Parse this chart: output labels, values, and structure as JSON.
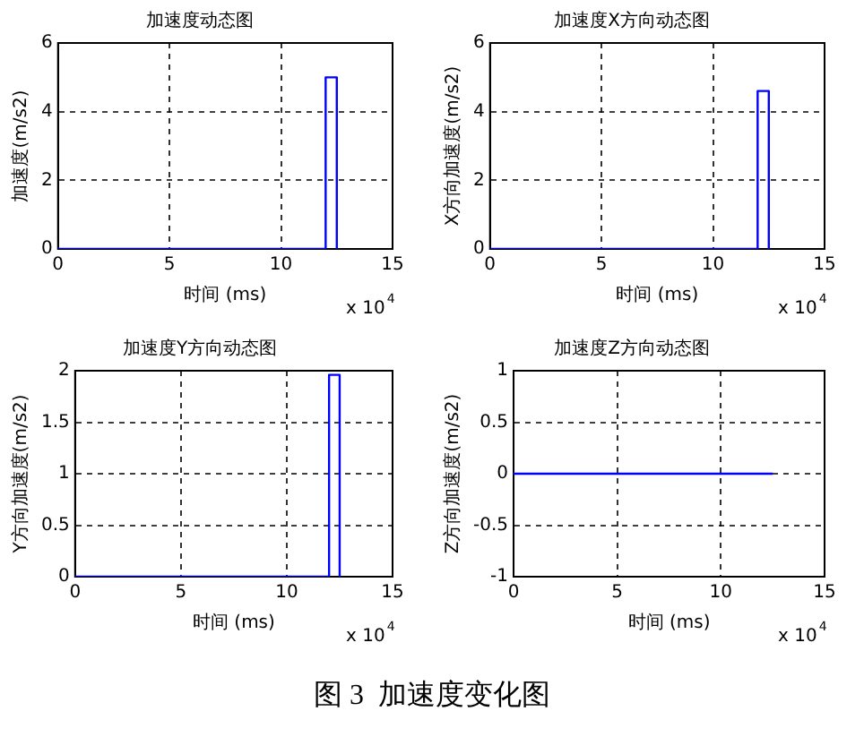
{
  "chart_data": [
    {
      "type": "line",
      "title": "加速度动态图",
      "xlabel": "时间 (ms)",
      "ylabel": "加速度(m/s2)",
      "x": [
        0,
        12,
        12,
        12.5,
        12.5
      ],
      "series": [
        {
          "color": "#0000ff",
          "values": [
            0,
            0,
            5,
            5,
            0
          ]
        }
      ],
      "xlim": [
        0,
        15
      ],
      "xticks": [
        0,
        5,
        10,
        15
      ],
      "ylim": [
        0,
        6
      ],
      "yticks": [
        0,
        2,
        4,
        6
      ],
      "grid": true,
      "annotations": [
        "x 10$^{4}$"
      ]
    },
    {
      "type": "line",
      "title": "加速度X方向动态图",
      "xlabel": "时间 (ms)",
      "ylabel": "X方向加速度(m/s2)",
      "x": [
        0,
        12,
        12,
        12.5,
        12.5
      ],
      "series": [
        {
          "color": "#0000ff",
          "values": [
            0,
            0,
            4.6,
            4.6,
            0
          ]
        }
      ],
      "xlim": [
        0,
        15
      ],
      "xticks": [
        0,
        5,
        10,
        15
      ],
      "ylim": [
        0,
        6
      ],
      "yticks": [
        0,
        2,
        4,
        6
      ],
      "grid": true,
      "annotations": [
        "x 10$^{4}$"
      ]
    },
    {
      "type": "line",
      "title": "加速度Y方向动态图",
      "xlabel": "时间 (ms)",
      "ylabel": "Y方向加速度(m/s2)",
      "x": [
        0,
        12,
        12,
        12.5,
        12.5
      ],
      "series": [
        {
          "color": "#0000ff",
          "values": [
            0,
            0,
            1.96,
            1.96,
            0
          ]
        }
      ],
      "xlim": [
        0,
        15
      ],
      "xticks": [
        0,
        5,
        10,
        15
      ],
      "ylim": [
        0,
        2
      ],
      "yticks": [
        0,
        0.5,
        1,
        1.5,
        2
      ],
      "grid": true,
      "annotations": [
        "x 10$^{4}$"
      ]
    },
    {
      "type": "line",
      "title": "加速度Z方向动态图",
      "xlabel": "时间 (ms)",
      "ylabel": "Z方向加速度(m/s2)",
      "x": [
        0,
        12.5
      ],
      "series": [
        {
          "color": "#0000ff",
          "values": [
            0,
            0
          ]
        }
      ],
      "xlim": [
        0,
        15
      ],
      "xticks": [
        0,
        5,
        10,
        15
      ],
      "ylim": [
        -1,
        1
      ],
      "yticks": [
        -1,
        -0.5,
        0,
        0.5,
        1
      ],
      "grid": true,
      "annotations": [
        "x 10$^{4}$",
        "图 3  加速度变化图"
      ]
    }
  ]
}
